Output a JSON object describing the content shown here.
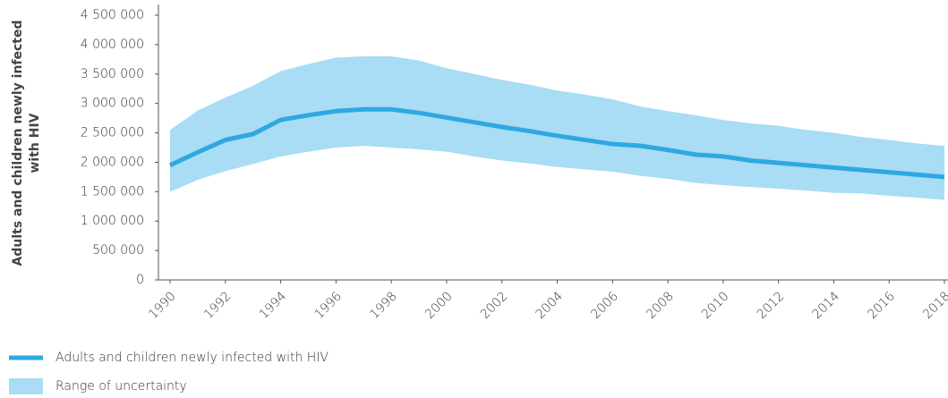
{
  "chart_data": {
    "type": "line",
    "y_label": [
      "Adults and children newly infected",
      "with HIV"
    ],
    "x": [
      1990,
      1991,
      1992,
      1993,
      1994,
      1995,
      1996,
      1997,
      1998,
      1999,
      2000,
      2001,
      2002,
      2003,
      2004,
      2005,
      2006,
      2007,
      2008,
      2009,
      2010,
      2011,
      2012,
      2013,
      2014,
      2015,
      2016,
      2017,
      2018
    ],
    "xlim": [
      1990,
      2018
    ],
    "xticks": [
      1990,
      1992,
      1994,
      1996,
      1998,
      2000,
      2002,
      2004,
      2006,
      2008,
      2010,
      2012,
      2014,
      2016,
      2018
    ],
    "ylim": [
      0,
      4500000
    ],
    "yticks": [
      0,
      {
        "value": 500000,
        "label": "500 000"
      },
      {
        "value": 1000000,
        "label": "1 000 000"
      },
      {
        "value": 1500000,
        "label": "1 500 000"
      },
      {
        "value": 2000000,
        "label": "2 000 000"
      },
      {
        "value": 2500000,
        "label": "2 500 000"
      },
      {
        "value": 3000000,
        "label": "3 000 000"
      },
      {
        "value": 3500000,
        "label": "3 500 000"
      },
      {
        "value": 4000000,
        "label": "4 000 000"
      },
      {
        "value": 4500000,
        "label": "4 500 000"
      }
    ],
    "series": [
      {
        "name": "Adults and children newly infected with HIV",
        "color": "#2ea8e0",
        "values": [
          1950000,
          2170000,
          2380000,
          2480000,
          2720000,
          2800000,
          2870000,
          2900000,
          2900000,
          2840000,
          2760000,
          2680000,
          2600000,
          2530000,
          2450000,
          2380000,
          2310000,
          2280000,
          2210000,
          2130000,
          2100000,
          2030000,
          1990000,
          1950000,
          1910000,
          1870000,
          1830000,
          1790000,
          1750000
        ]
      }
    ],
    "band": {
      "name": "Range of uncertainty",
      "color": "#a9dcf5",
      "upper": [
        2550000,
        2880000,
        3100000,
        3300000,
        3550000,
        3670000,
        3780000,
        3800000,
        3800000,
        3730000,
        3600000,
        3500000,
        3400000,
        3320000,
        3220000,
        3150000,
        3070000,
        2950000,
        2870000,
        2800000,
        2720000,
        2660000,
        2620000,
        2550000,
        2500000,
        2430000,
        2380000,
        2320000,
        2280000
      ],
      "lower": [
        1500000,
        1700000,
        1850000,
        1970000,
        2100000,
        2180000,
        2250000,
        2280000,
        2250000,
        2220000,
        2180000,
        2100000,
        2030000,
        1980000,
        1920000,
        1880000,
        1840000,
        1770000,
        1720000,
        1650000,
        1610000,
        1580000,
        1550000,
        1520000,
        1480000,
        1470000,
        1430000,
        1400000,
        1360000
      ]
    }
  }
}
